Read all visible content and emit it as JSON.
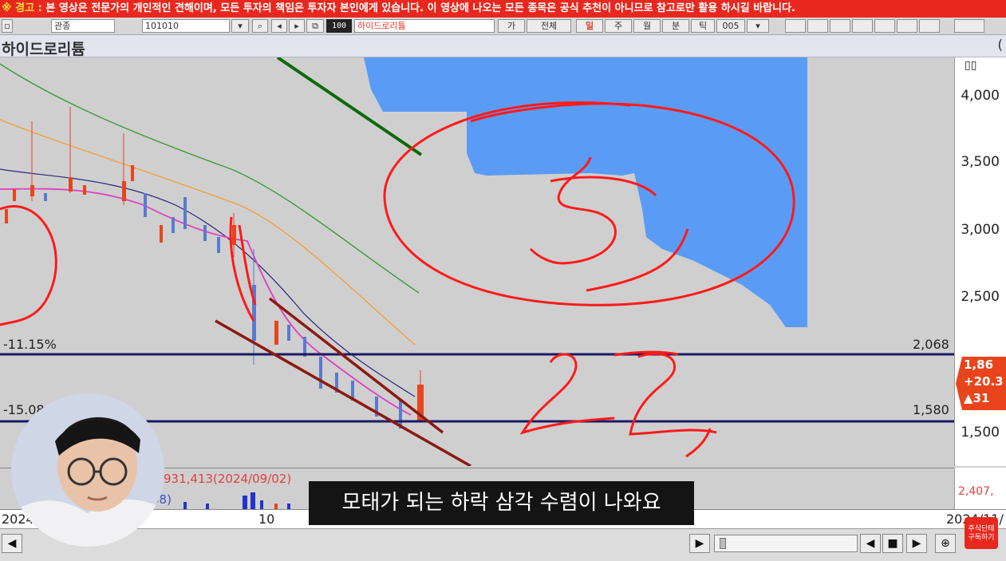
{
  "warning": {
    "prefix": "※ 경고 :",
    "text": "본 영상은 전문가의 개인적인 견해이며, 모든 투자의 책임은 투자자 본인에게 있습니다. 이 영상에 나오는 모든 종목은 공식 추천이 아니므로 참고로만 활용 하시길 바랍니다."
  },
  "toolbar": {
    "box1": "관종",
    "box2": "101010",
    "zoom": "100",
    "stock_field": "하이드로리튬",
    "btn_ga": "가",
    "btn_all": "전체",
    "btn_day": "일",
    "btn_week": "주",
    "btn_month": "월",
    "btn_min": "분",
    "btn_tick": "틱",
    "btn_num": "005"
  },
  "title": {
    "stock_name": "하이드로리튬",
    "paren": "("
  },
  "axis": {
    "ticks": [
      "4,000",
      "3,500",
      "3,000",
      "2,500",
      "1,500"
    ]
  },
  "levels": {
    "upper_value": "2,068",
    "upper_pct": "-11.15%",
    "lower_value": "1,580",
    "lower_pct": "-15.08"
  },
  "price_tag": {
    "price": "1,86",
    "change": "+20.3",
    "diff": "▲31"
  },
  "volume": {
    "label": "931,413(2024/09/02)",
    "label2": "08)",
    "axis_text": "2,407,"
  },
  "dates": {
    "left": "2024/",
    "mid": "10",
    "right": "2024/11/"
  },
  "caption": "모태가 되는 하락 삼각 수렴이 나와요",
  "logo": {
    "line1": "주식단테",
    "line2": "구독하기"
  },
  "colors": {
    "warning_bg": "#e8281e",
    "ichimoku_cloud": "#5a9cf5",
    "level_line": "#1a1a66",
    "annotation_red": "#ff1a1a",
    "trend_dark_red": "#8b1a10",
    "trend_green": "#0b6b0b"
  },
  "chart_data": {
    "type": "candlestick",
    "title": "하이드로리튬",
    "y_ticks": [
      4000,
      3500,
      3000,
      2500,
      1500
    ],
    "horizontal_levels": [
      {
        "value": 2068,
        "pct": "-11.15%"
      },
      {
        "value": 1580,
        "pct": "-15.08"
      }
    ],
    "annotations": [
      "3",
      "2,2"
    ]
  }
}
